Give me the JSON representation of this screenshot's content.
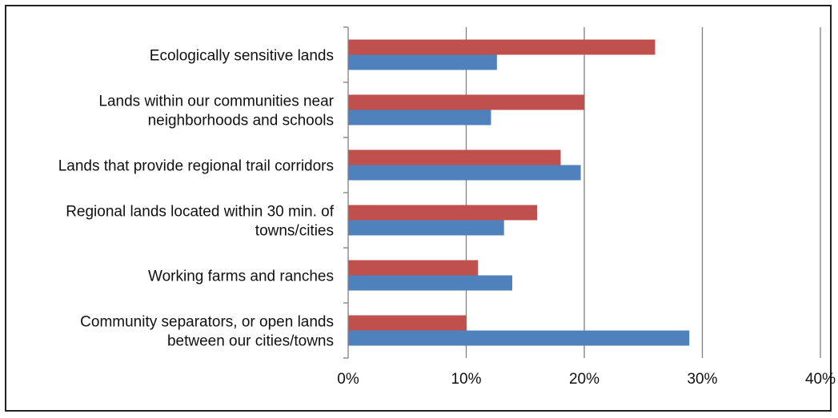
{
  "chart_data": {
    "type": "bar",
    "orientation": "horizontal",
    "categories": [
      [
        "Ecologically sensitive lands"
      ],
      [
        "Lands within our communities near",
        "neighborhoods and schools"
      ],
      [
        "Lands that provide regional trail corridors"
      ],
      [
        "Regional lands located within 30 min. of",
        "towns/cities"
      ],
      [
        "Working farms and ranches"
      ],
      [
        "Community separators, or open lands",
        "between our cities/towns"
      ]
    ],
    "series": [
      {
        "color": "#c0504d",
        "values": [
          26,
          20,
          18,
          16,
          11,
          10
        ]
      },
      {
        "color": "#4f81bd",
        "values": [
          12.6,
          12.1,
          19.7,
          13.2,
          13.9,
          28.9
        ]
      }
    ],
    "xlim": [
      0,
      40
    ],
    "xticks": [
      "0%",
      "10%",
      "20%",
      "30%",
      "40%"
    ],
    "tick_values": [
      0,
      10,
      20,
      30,
      40
    ],
    "grid": true
  }
}
